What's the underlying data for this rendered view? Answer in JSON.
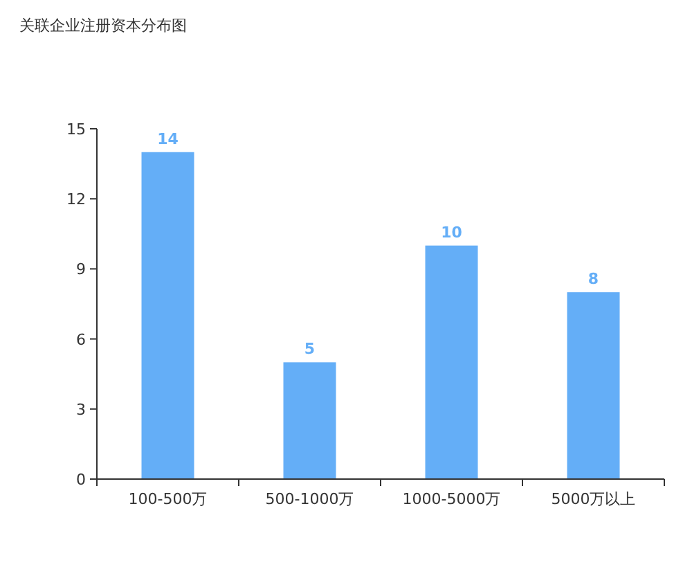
{
  "chart_data": {
    "type": "bar",
    "title": "关联企业注册资本分布图",
    "categories": [
      "100-500万",
      "500-1000万",
      "1000-5000万",
      "5000万以上"
    ],
    "values": [
      14,
      5,
      10,
      8
    ],
    "color": "#64aef7",
    "ylim": [
      0,
      15
    ],
    "yticks": [
      0,
      3,
      6,
      9,
      12,
      15
    ],
    "data_labels": true
  }
}
